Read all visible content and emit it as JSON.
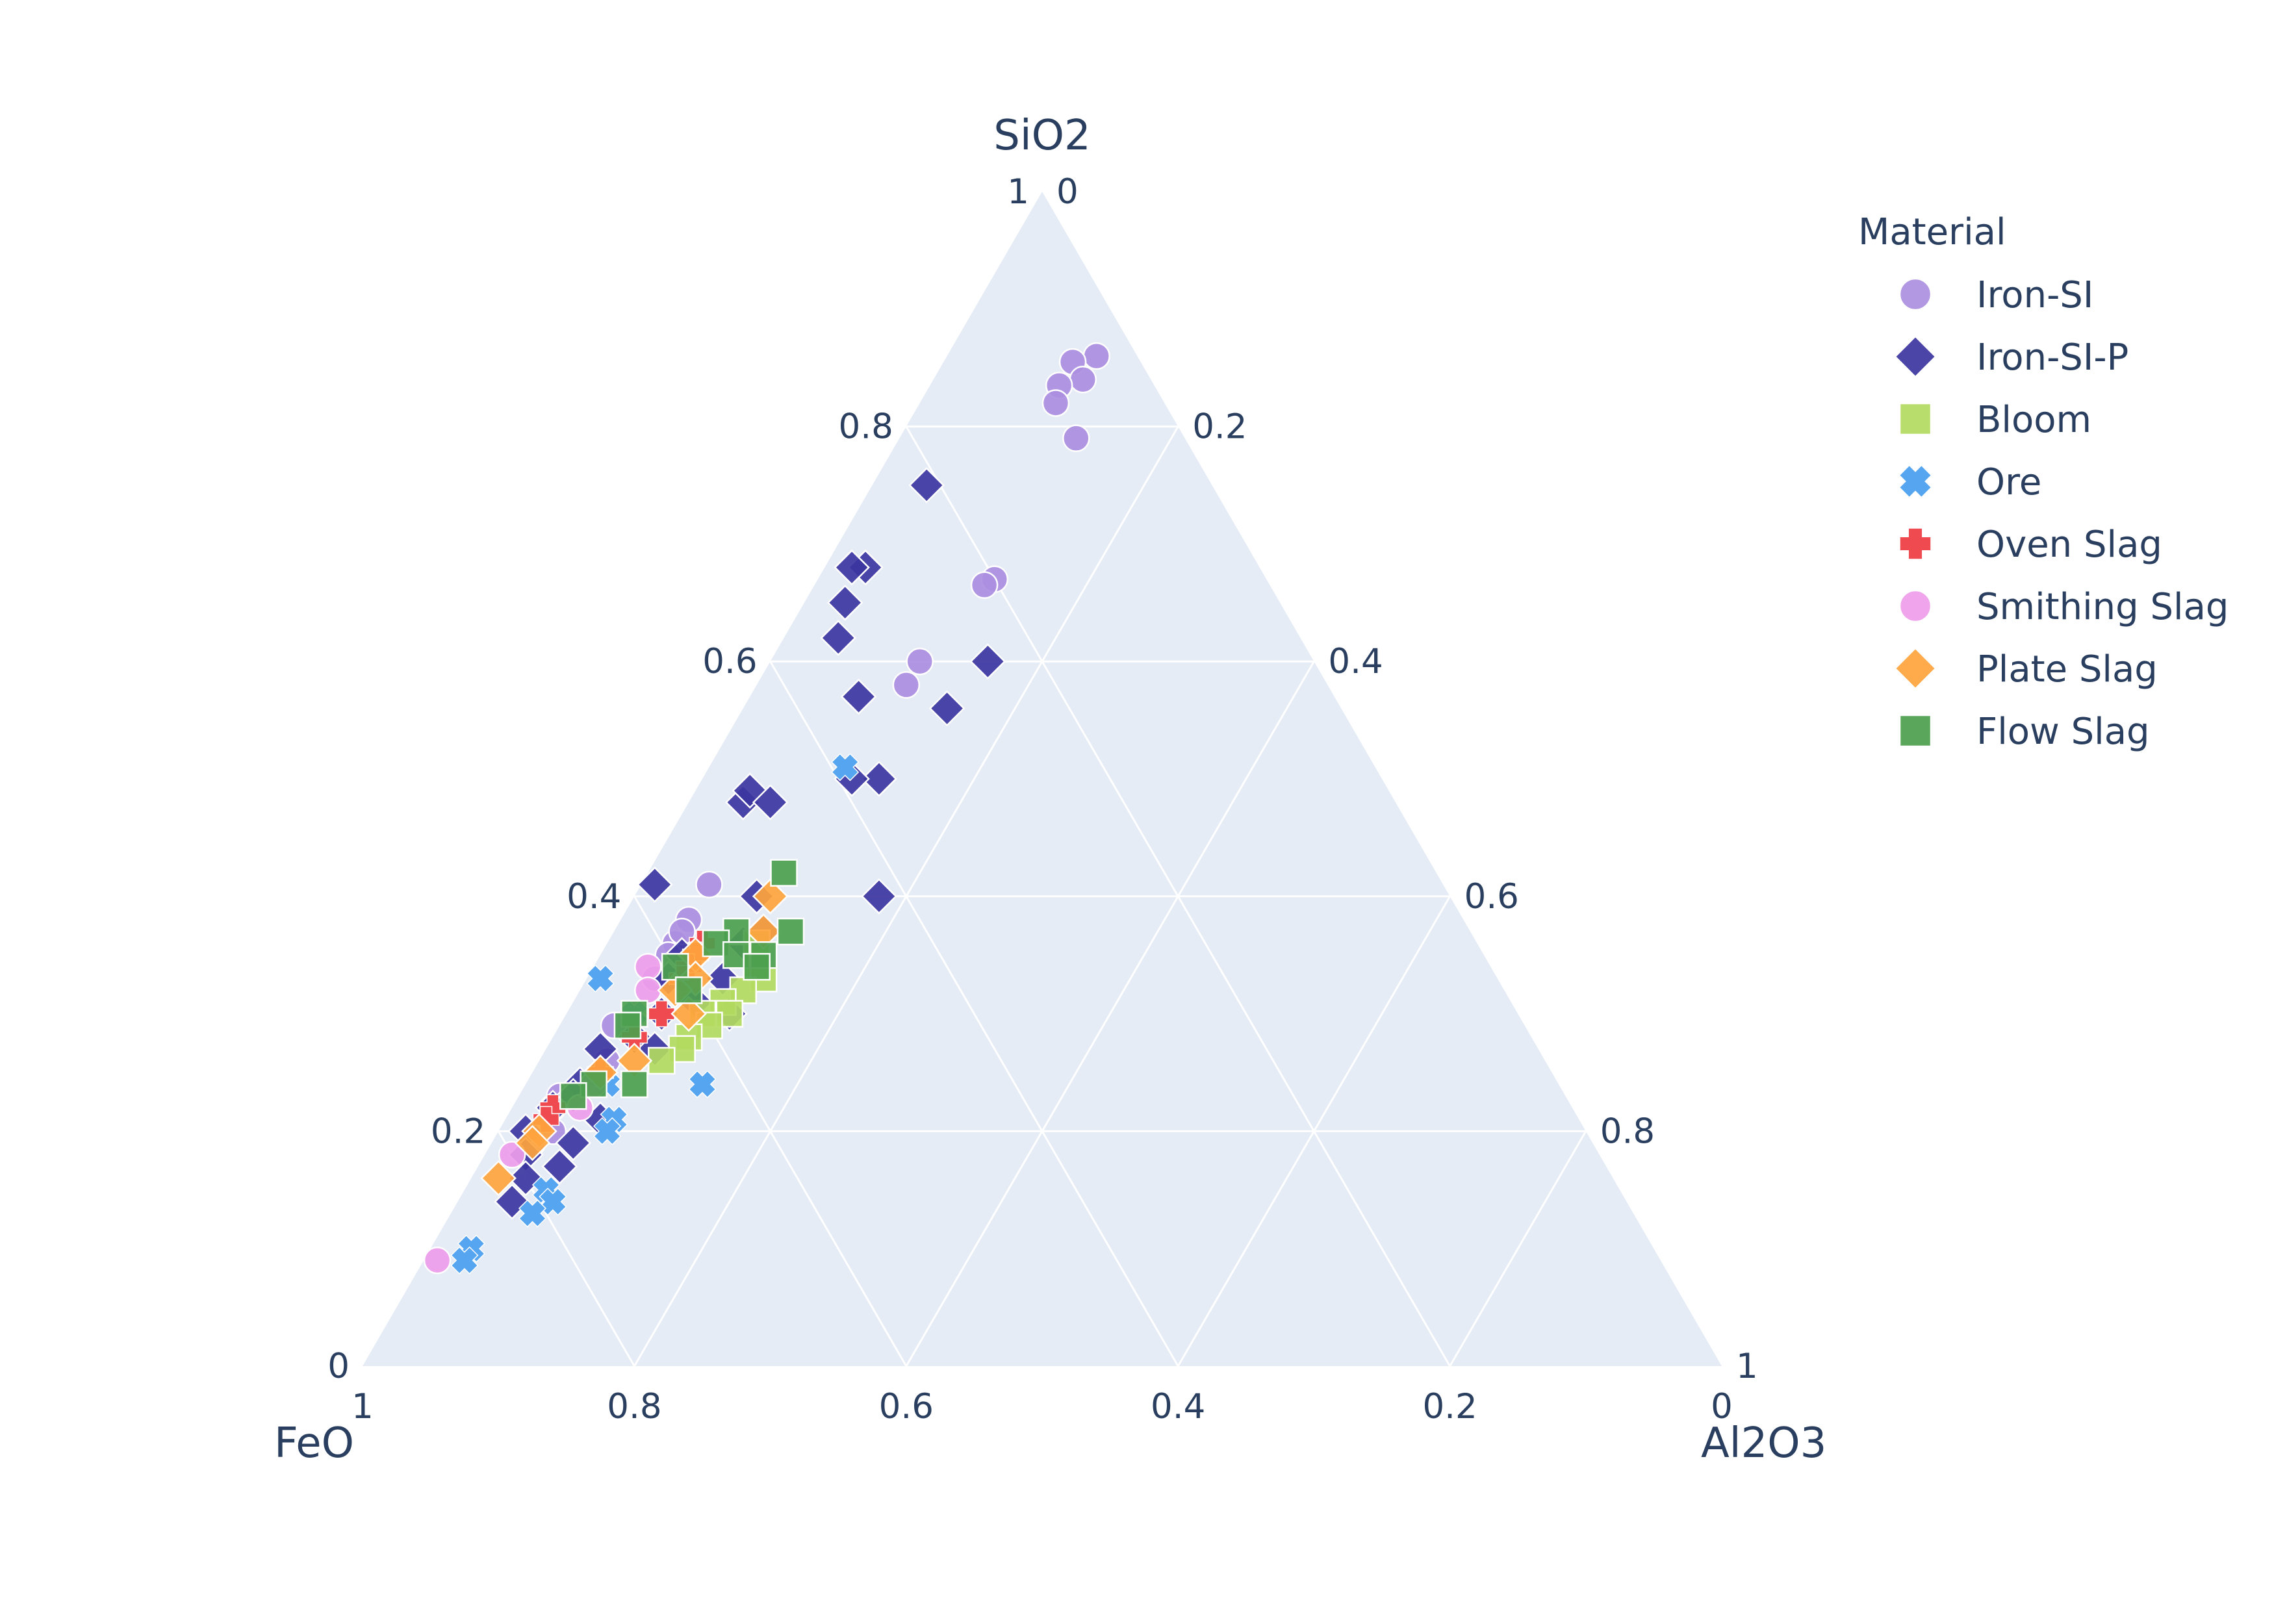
{
  "chart_data": {
    "type": "scatter",
    "subtype": "ternary",
    "axes": {
      "a": {
        "title": "SiO2",
        "ticks": [
          "0",
          "0.2",
          "0.4",
          "0.6",
          "0.8",
          "1"
        ]
      },
      "b": {
        "title": "FeO",
        "ticks": [
          "0",
          "0.2",
          "0.4",
          "0.6",
          "0.8",
          "1"
        ]
      },
      "c": {
        "title": "Al2O3",
        "ticks": [
          "0",
          "0.2",
          "0.4",
          "0.6",
          "0.8",
          "1"
        ]
      }
    },
    "grid": true,
    "legend": {
      "title": "Material",
      "placement": "right"
    },
    "background_color": "#E5ECF6",
    "series": [
      {
        "name": "Iron-SI",
        "color": "#AB8EE0",
        "symbol": "circle",
        "points": [
          [
            0.86,
            0.03
          ],
          [
            0.855,
            0.05
          ],
          [
            0.84,
            0.05
          ],
          [
            0.835,
            0.07
          ],
          [
            0.82,
            0.08
          ],
          [
            0.79,
            0.08
          ],
          [
            0.67,
            0.2
          ],
          [
            0.665,
            0.21
          ],
          [
            0.6,
            0.29
          ],
          [
            0.58,
            0.31
          ],
          [
            0.41,
            0.54
          ],
          [
            0.38,
            0.57
          ],
          [
            0.36,
            0.59
          ],
          [
            0.37,
            0.58
          ],
          [
            0.35,
            0.6
          ],
          [
            0.33,
            0.62
          ],
          [
            0.3,
            0.65
          ],
          [
            0.29,
            0.67
          ],
          [
            0.26,
            0.69
          ],
          [
            0.23,
            0.74
          ],
          [
            0.22,
            0.75
          ],
          [
            0.2,
            0.76
          ],
          [
            0.19,
            0.78
          ]
        ]
      },
      {
        "name": "Iron-SI-P",
        "color": "#3C35A0",
        "symbol": "diamond",
        "points": [
          [
            0.75,
            0.21
          ],
          [
            0.68,
            0.29
          ],
          [
            0.68,
            0.3
          ],
          [
            0.65,
            0.32
          ],
          [
            0.6,
            0.24
          ],
          [
            0.62,
            0.34
          ],
          [
            0.57,
            0.35
          ],
          [
            0.56,
            0.29
          ],
          [
            0.5,
            0.37
          ],
          [
            0.5,
            0.39
          ],
          [
            0.48,
            0.48
          ],
          [
            0.49,
            0.47
          ],
          [
            0.48,
            0.46
          ],
          [
            0.4,
            0.51
          ],
          [
            0.41,
            0.58
          ],
          [
            0.4,
            0.42
          ],
          [
            0.37,
            0.52
          ],
          [
            0.36,
            0.54
          ],
          [
            0.35,
            0.59
          ],
          [
            0.33,
            0.61
          ],
          [
            0.33,
            0.57
          ],
          [
            0.31,
            0.6
          ],
          [
            0.3,
            0.63
          ],
          [
            0.3,
            0.58
          ],
          [
            0.28,
            0.66
          ],
          [
            0.27,
            0.69
          ],
          [
            0.27,
            0.65
          ],
          [
            0.25,
            0.7
          ],
          [
            0.24,
            0.72
          ],
          [
            0.23,
            0.73
          ],
          [
            0.22,
            0.75
          ],
          [
            0.21,
            0.72
          ],
          [
            0.2,
            0.78
          ],
          [
            0.19,
            0.75
          ],
          [
            0.17,
            0.77
          ],
          [
            0.18,
            0.79
          ],
          [
            0.16,
            0.8
          ],
          [
            0.14,
            0.82
          ]
        ]
      },
      {
        "name": "Bloom",
        "color": "#B2DA60",
        "symbol": "square",
        "points": [
          [
            0.36,
            0.53
          ],
          [
            0.34,
            0.54
          ],
          [
            0.33,
            0.54
          ],
          [
            0.32,
            0.56
          ],
          [
            0.31,
            0.58
          ],
          [
            0.3,
            0.58
          ],
          [
            0.3,
            0.6
          ],
          [
            0.29,
            0.6
          ],
          [
            0.28,
            0.62
          ],
          [
            0.27,
            0.63
          ],
          [
            0.26,
            0.65
          ]
        ]
      },
      {
        "name": "Ore",
        "color": "#56A5F0",
        "symbol": "x",
        "points": [
          [
            0.51,
            0.39
          ],
          [
            0.33,
            0.66
          ],
          [
            0.3,
            0.65
          ],
          [
            0.24,
            0.63
          ],
          [
            0.24,
            0.7
          ],
          [
            0.21,
            0.71
          ],
          [
            0.2,
            0.72
          ],
          [
            0.15,
            0.79
          ],
          [
            0.14,
            0.79
          ],
          [
            0.13,
            0.81
          ],
          [
            0.1,
            0.87
          ],
          [
            0.09,
            0.88
          ]
        ]
      },
      {
        "name": "Oven Slag",
        "color": "#EF4A4F",
        "symbol": "cross",
        "points": [
          [
            0.36,
            0.57
          ],
          [
            0.35,
            0.58
          ],
          [
            0.34,
            0.59
          ],
          [
            0.33,
            0.6
          ],
          [
            0.3,
            0.63
          ],
          [
            0.28,
            0.66
          ],
          [
            0.25,
            0.7
          ],
          [
            0.22,
            0.75
          ],
          [
            0.21,
            0.76
          ]
        ]
      },
      {
        "name": "Smithing Slag",
        "color": "#EE9CEA",
        "symbol": "circle",
        "points": [
          [
            0.34,
            0.62
          ],
          [
            0.32,
            0.63
          ],
          [
            0.24,
            0.71
          ],
          [
            0.22,
            0.73
          ],
          [
            0.18,
            0.8
          ],
          [
            0.09,
            0.9
          ]
        ]
      },
      {
        "name": "Plate Slag",
        "color": "#FFA43D",
        "symbol": "diamond",
        "points": [
          [
            0.4,
            0.5
          ],
          [
            0.37,
            0.52
          ],
          [
            0.35,
            0.58
          ],
          [
            0.33,
            0.59
          ],
          [
            0.32,
            0.61
          ],
          [
            0.3,
            0.61
          ],
          [
            0.26,
            0.67
          ],
          [
            0.25,
            0.7
          ],
          [
            0.2,
            0.77
          ],
          [
            0.19,
            0.78
          ],
          [
            0.16,
            0.82
          ]
        ]
      },
      {
        "name": "Flow Slag",
        "color": "#4C9F4E",
        "symbol": "square",
        "points": [
          [
            0.42,
            0.48
          ],
          [
            0.37,
            0.5
          ],
          [
            0.37,
            0.54
          ],
          [
            0.36,
            0.56
          ],
          [
            0.35,
            0.53
          ],
          [
            0.35,
            0.55
          ],
          [
            0.34,
            0.54
          ],
          [
            0.34,
            0.6
          ],
          [
            0.32,
            0.6
          ],
          [
            0.3,
            0.65
          ],
          [
            0.29,
            0.66
          ],
          [
            0.24,
            0.68
          ],
          [
            0.24,
            0.71
          ],
          [
            0.23,
            0.73
          ]
        ]
      }
    ]
  }
}
